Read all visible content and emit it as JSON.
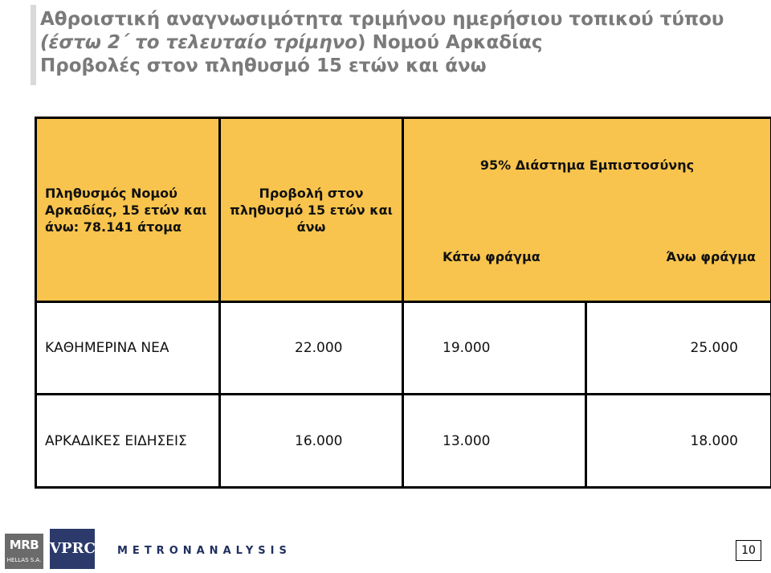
{
  "title": {
    "line1": "Αθροιστική αναγνωσιμότητα τριμήνου ημερήσιου τοπικού τύπου",
    "line2_italic": "(έστω 2΄ το τελευταίο τρίμηνο",
    "line2_rest": ") Νομού Αρκαδίας",
    "line3": "Προβολές στον πληθυσμό 15 ετών και άνω"
  },
  "table": {
    "headers": {
      "population": "Πληθυσμός Νομού Αρκαδίας, 15 ετών και άνω: 78.141 άτομα",
      "projection": "Προβολή στον πληθυσμό 15 ετών και άνω",
      "ci_title": "95% Διάστημα Εμπιστοσύνης",
      "ci_lower": "Κάτω φράγμα",
      "ci_upper": "Άνω φράγμα"
    },
    "rows": [
      {
        "name": "ΚΑΘΗΜΕΡΙΝΑ ΝΕΑ",
        "projection": "22.000",
        "lower": "19.000",
        "upper": "25.000"
      },
      {
        "name": "ΑΡΚΑΔΙΚΕΣ ΕΙΔΗΣΕΙΣ",
        "projection": "16.000",
        "lower": "13.000",
        "upper": "18.000"
      }
    ]
  },
  "colors": {
    "header_fill": "#f8c44d",
    "title_text": "#7a7a7a"
  },
  "footer": {
    "logos": {
      "mrb": {
        "main": "MRB",
        "sub": "HELLAS S.A."
      },
      "vprc": "VPRC",
      "metron": "METRONANALYSIS"
    },
    "page_number": "10"
  }
}
